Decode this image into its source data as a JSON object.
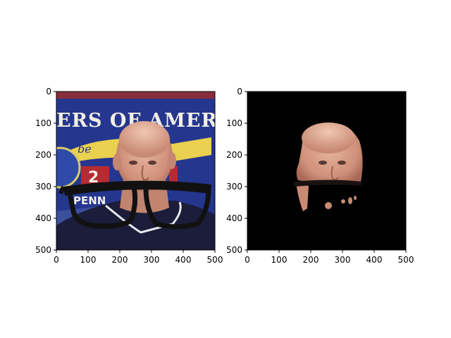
{
  "chart_data": [
    {
      "type": "image",
      "title": "",
      "xlabel": "",
      "ylabel": "",
      "xlim": [
        0,
        500
      ],
      "ylim": [
        500,
        0
      ],
      "y_inverted": true,
      "x_ticks": [
        0,
        100,
        200,
        300,
        400,
        500
      ],
      "y_ticks": [
        0,
        100,
        200,
        300,
        400,
        500
      ],
      "grid": false,
      "content": "photo of a man in front of a blue banner with sunglasses overlay",
      "banner_text": [
        "ERS OF AMERICA",
        "be",
        "2",
        "PENN"
      ]
    },
    {
      "type": "image",
      "title": "",
      "xlabel": "",
      "ylabel": "",
      "xlim": [
        0,
        500
      ],
      "ylim": [
        500,
        0
      ],
      "y_inverted": true,
      "x_ticks": [
        0,
        100,
        200,
        300,
        400,
        500
      ],
      "y_ticks": [
        0,
        100,
        200,
        300,
        400,
        500
      ],
      "grid": false,
      "content": "segmented face mask on black background"
    }
  ],
  "colors": {
    "background": "#ffffff",
    "banner_blue": "#25368e",
    "banner_text": "#f2efe6",
    "skin": "#d9a08a",
    "shirt": "#1b1d3a",
    "mask_bg": "#000000",
    "glasses": "#111111"
  }
}
